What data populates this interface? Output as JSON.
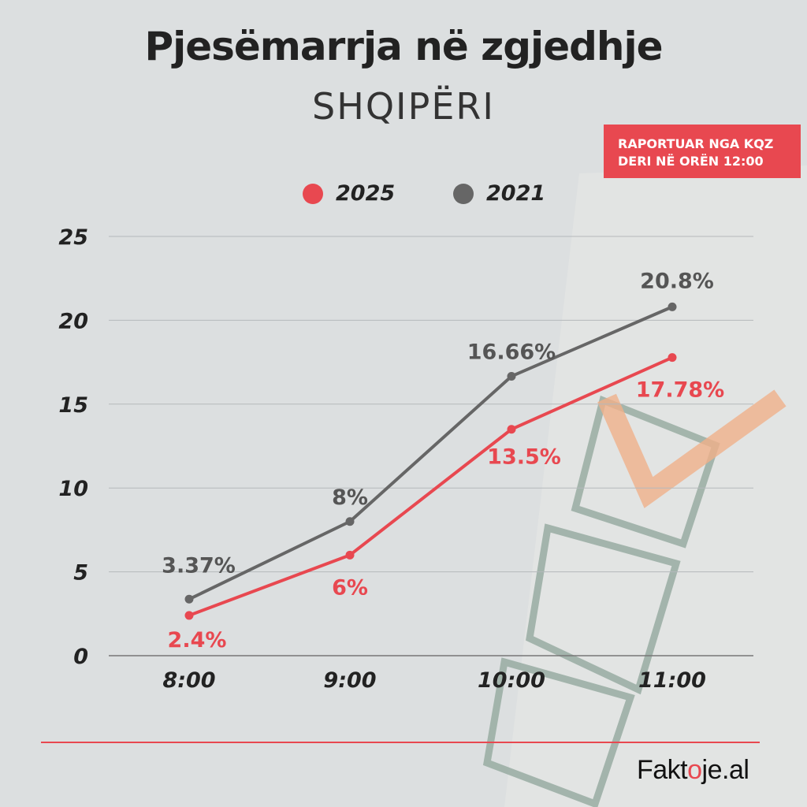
{
  "title": "Pjesëmarrja në zgjedhje",
  "subtitle": "SHQIPËRI",
  "badge": {
    "line1": "RAPORTUAR NGA KQZ",
    "line2": "DERI NË ORËN 12:00"
  },
  "logo": {
    "part1": "Fakt",
    "part2": "o",
    "part3": "je.al"
  },
  "colors": {
    "accent": "#e84850",
    "series_2025": "#e84850",
    "series_2021": "#666666",
    "background": "#dcdfe0"
  },
  "chart_data": {
    "type": "line",
    "categories": [
      "8:00",
      "9:00",
      "10:00",
      "11:00"
    ],
    "y_ticks": [
      "0",
      "5",
      "10",
      "15",
      "20",
      "25"
    ],
    "ylim": [
      0,
      25
    ],
    "grid": true,
    "legend_position": "top",
    "series": [
      {
        "name": "2025",
        "values": [
          2.4,
          6,
          13.5,
          17.78
        ],
        "labels": [
          "2.4%",
          "6%",
          "13.5%",
          "17.78%"
        ]
      },
      {
        "name": "2021",
        "values": [
          3.37,
          8,
          16.66,
          20.8
        ],
        "labels": [
          "3.37%",
          "8%",
          "16.66%",
          "20.8%"
        ]
      }
    ]
  }
}
